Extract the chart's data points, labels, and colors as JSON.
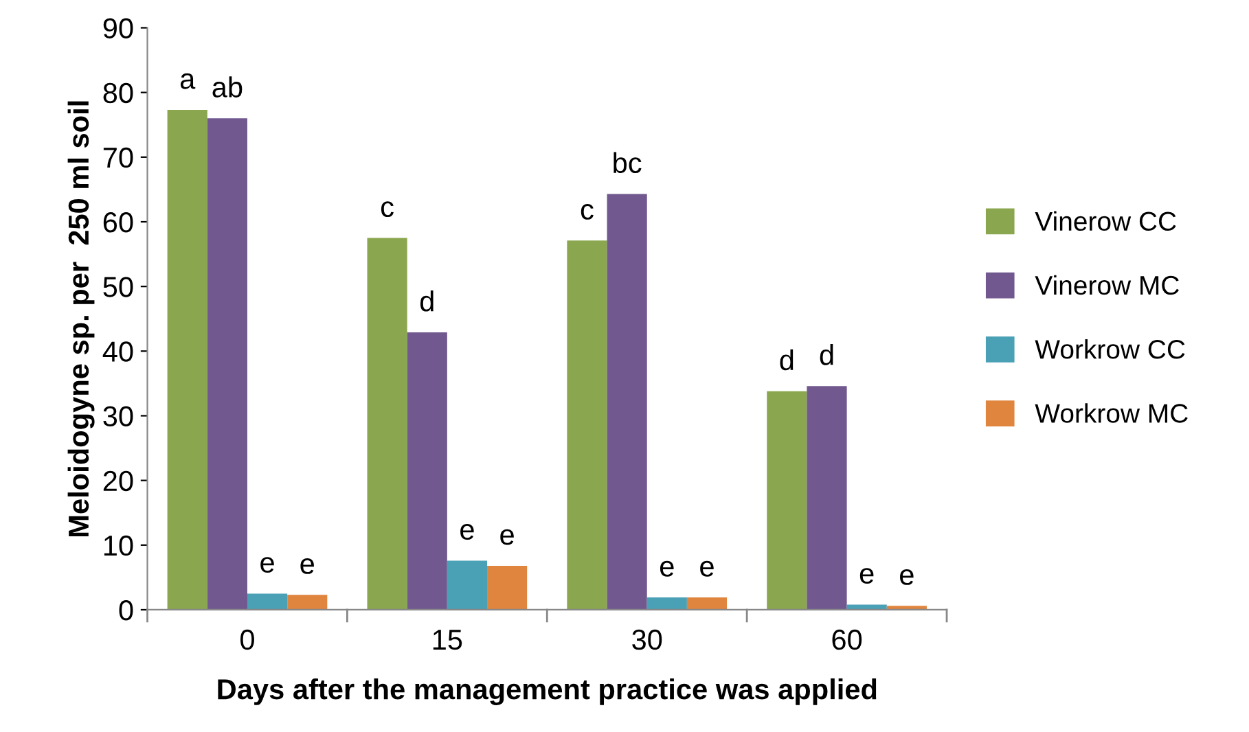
{
  "chart_data": {
    "type": "bar",
    "xlabel": "Days after the management practice was applied",
    "ylabel": "Meloidogyne sp. per  250 ml soil",
    "categories": [
      "0",
      "15",
      "30",
      "60"
    ],
    "series": [
      {
        "name": "Vinerow CC",
        "color": "#8aa64e",
        "values": [
          77.3,
          57.5,
          57.1,
          33.8
        ]
      },
      {
        "name": "Vinerow MC",
        "color": "#71588f",
        "values": [
          76.0,
          42.9,
          64.3,
          34.6
        ]
      },
      {
        "name": "Workrow CC",
        "color": "#4aa0b5",
        "values": [
          2.5,
          7.6,
          1.9,
          0.8
        ]
      },
      {
        "name": "Workrow MC",
        "color": "#e0853e",
        "values": [
          2.3,
          6.8,
          1.9,
          0.6
        ]
      }
    ],
    "ylim": [
      0,
      90
    ],
    "yticks": [
      0,
      10,
      20,
      30,
      40,
      50,
      60,
      70,
      80,
      90
    ],
    "grid": false,
    "legend": "right",
    "annotations": [
      "a",
      "ab",
      "e",
      "e",
      "c",
      "d",
      "e",
      "e",
      "c",
      "bc",
      "e",
      "e",
      "d",
      "d",
      "e",
      "e"
    ]
  }
}
